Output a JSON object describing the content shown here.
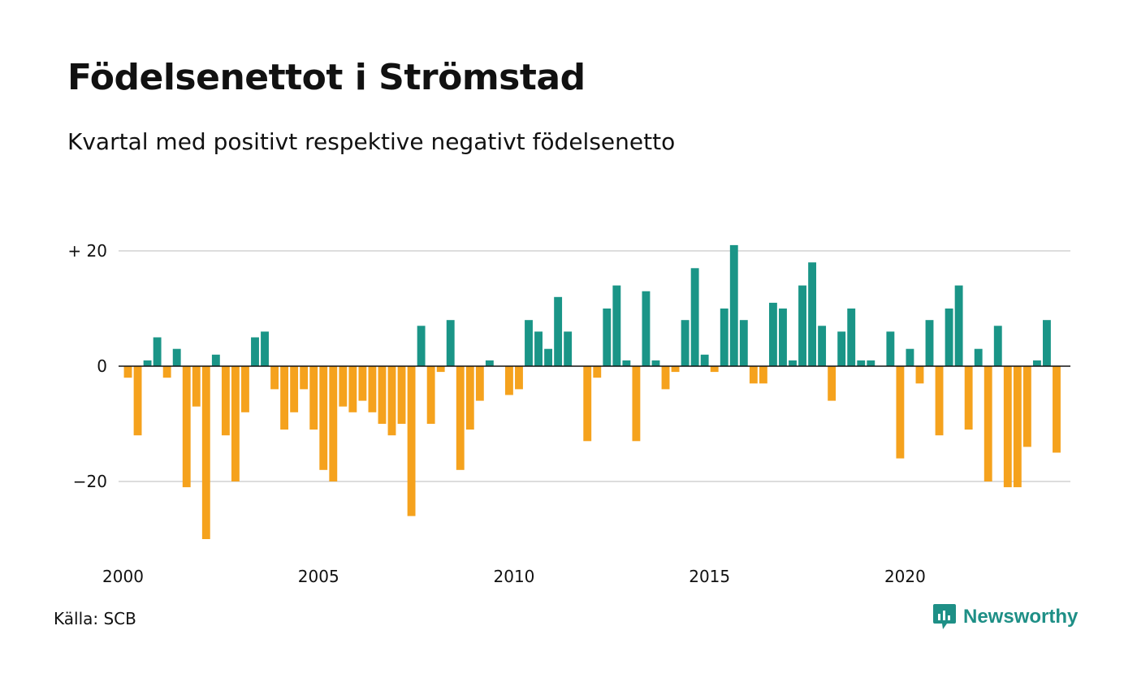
{
  "title": "Födelsenettot i Strömstad",
  "subtitle": "Kvartal med positivt respektive negativt födelsenetto",
  "source": "Källa: SCB",
  "brand": {
    "name": "Newsworthy",
    "icon": "newsworthy-logo-icon",
    "color": "#1e8f86"
  },
  "colors": {
    "positive": "#1a9587",
    "negative": "#f5a21d",
    "grid": "#dddddd",
    "axis": "#111111"
  },
  "chart_data": {
    "type": "bar",
    "title": "Födelsenettot i Strömstad",
    "subtitle": "Kvartal med positivt respektive negativt födelsenetto",
    "xlabel": "",
    "ylabel": "",
    "x_start": 2000,
    "x_end": 2024,
    "periods_per_year": 4,
    "x_ticks": [
      {
        "value": 2000,
        "label": "2000"
      },
      {
        "value": 2005,
        "label": "2005"
      },
      {
        "value": 2010,
        "label": "2010"
      },
      {
        "value": 2015,
        "label": "2015"
      },
      {
        "value": 2020,
        "label": "2020"
      }
    ],
    "y_ticks": [
      {
        "value": 20,
        "label": "+ 20"
      },
      {
        "value": 0,
        "label": "0"
      },
      {
        "value": -20,
        "label": "−20"
      }
    ],
    "ylim": [
      -30,
      21
    ],
    "grid": true,
    "legend": "none",
    "values": [
      -2,
      -12,
      1,
      5,
      -2,
      3,
      -21,
      -7,
      -30,
      2,
      -12,
      -20,
      -8,
      5,
      6,
      -4,
      -11,
      -8,
      -4,
      -11,
      -18,
      -20,
      -7,
      -8,
      -6,
      -8,
      -10,
      -12,
      -10,
      -26,
      7,
      -10,
      -1,
      8,
      -18,
      -11,
      -6,
      1,
      0,
      -5,
      -4,
      8,
      6,
      3,
      12,
      6,
      0,
      -13,
      -2,
      10,
      14,
      1,
      -13,
      13,
      1,
      -4,
      -1,
      8,
      17,
      2,
      -1,
      10,
      21,
      8,
      -3,
      -3,
      11,
      10,
      1,
      14,
      18,
      7,
      -6,
      6,
      10,
      1,
      1,
      0,
      6,
      -16,
      3,
      -3,
      8,
      -12,
      10,
      14,
      -11,
      3,
      -20,
      7,
      -21,
      -21,
      -14,
      1,
      8,
      -15
    ]
  }
}
